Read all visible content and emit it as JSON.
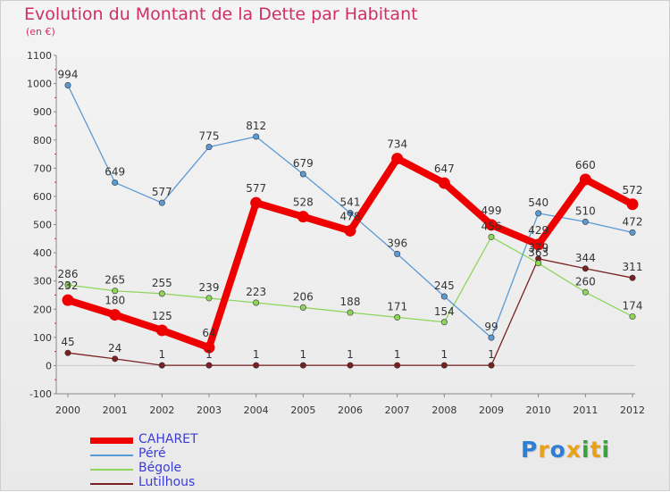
{
  "title": "Evolution du Montant de la Dette par Habitant",
  "unit": "(en €)",
  "logo": "Proxiti",
  "chart_data": {
    "type": "line",
    "title": "Evolution du Montant de la Dette par Habitant",
    "ylabel": "(en €)",
    "xlabel": "",
    "ylim": [
      -100,
      1100
    ],
    "yticks": [
      -100,
      0,
      100,
      200,
      300,
      400,
      500,
      600,
      700,
      800,
      900,
      1000,
      1100
    ],
    "grid": false,
    "legend_placement": "bottom-left",
    "x": [
      "2000",
      "2001",
      "2002",
      "2003",
      "2004",
      "2005",
      "2006",
      "2007",
      "2008",
      "2009",
      "2010",
      "2011",
      "2012"
    ],
    "series": [
      {
        "name": "CAHARET",
        "color": "#ee0000",
        "values": [
          232,
          180,
          125,
          64,
          577,
          528,
          478,
          734,
          647,
          499,
          429,
          660,
          572
        ]
      },
      {
        "name": "Péré",
        "color": "#5a9ad6",
        "values": [
          994,
          649,
          577,
          775,
          812,
          679,
          541,
          396,
          245,
          99,
          540,
          510,
          472
        ]
      },
      {
        "name": "Bégole",
        "color": "#8ed65a",
        "values": [
          286,
          265,
          255,
          239,
          223,
          206,
          188,
          171,
          154,
          456,
          363,
          260,
          174
        ]
      },
      {
        "name": "Lutilhous",
        "color": "#7a2020",
        "values": [
          45,
          24,
          1,
          1,
          1,
          1,
          1,
          1,
          1,
          1,
          379,
          344,
          311
        ]
      }
    ],
    "data_labels": {
      "CAHARET": [
        "232",
        "180",
        "125",
        "64",
        "577",
        "528",
        "478",
        "734",
        "647",
        "499",
        "429",
        "660",
        "572"
      ],
      "Péré": [
        "994",
        "649",
        "577",
        "775",
        "812",
        "679",
        "541",
        "396",
        "245",
        "99",
        "540",
        "510",
        "472"
      ],
      "Bégole": [
        "286",
        "265",
        "255",
        "239",
        "223",
        "206",
        "188",
        "171",
        "154",
        "456",
        "363",
        "260",
        "174"
      ],
      "Lutilhous": [
        "45",
        "24",
        "1",
        "1",
        "1",
        "1",
        "1",
        "1",
        "1",
        "1",
        "379",
        "344",
        "311"
      ]
    }
  }
}
